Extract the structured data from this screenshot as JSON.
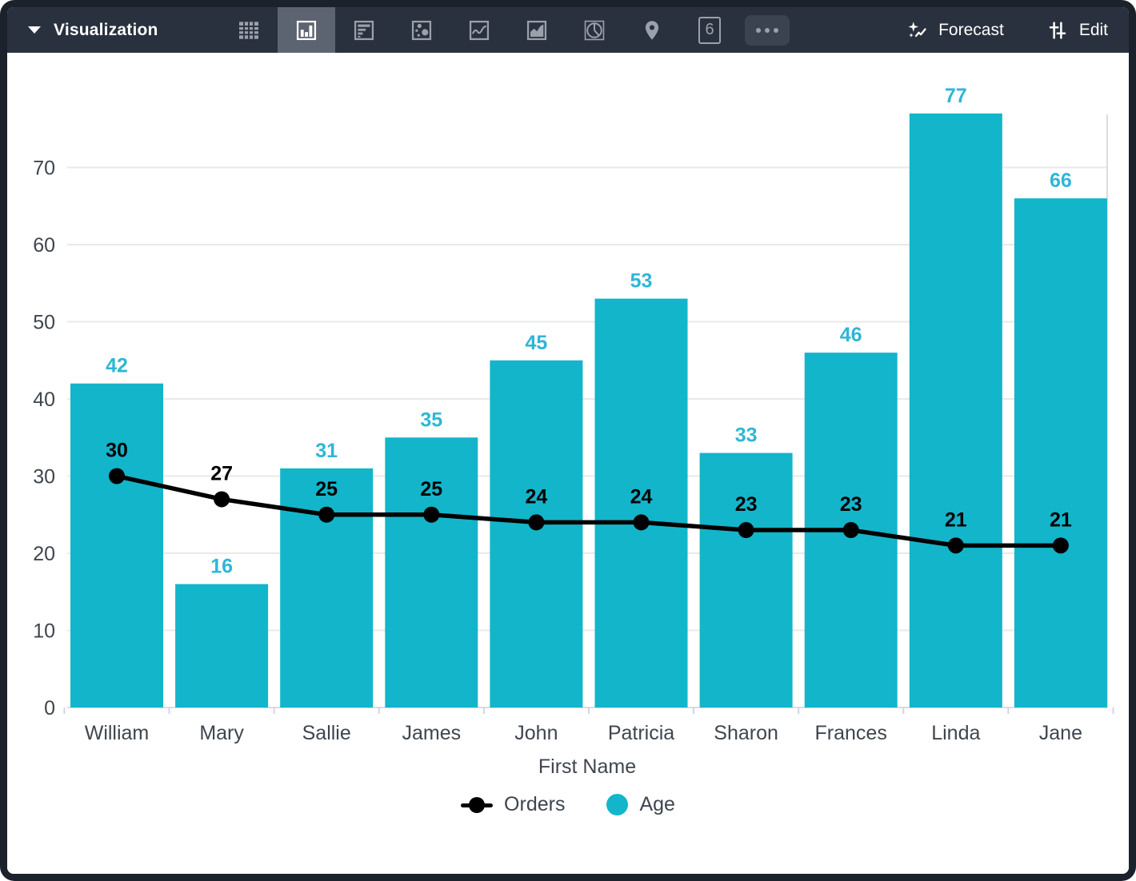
{
  "toolbar": {
    "title": "Visualization",
    "icons": [
      {
        "name": "table-icon",
        "selected": false
      },
      {
        "name": "column-chart-icon",
        "selected": true
      },
      {
        "name": "bar-chart-icon",
        "selected": false
      },
      {
        "name": "scatter-chart-icon",
        "selected": false
      },
      {
        "name": "line-chart-icon",
        "selected": false
      },
      {
        "name": "area-chart-icon",
        "selected": false
      },
      {
        "name": "pie-chart-icon",
        "selected": false
      },
      {
        "name": "map-pin-icon",
        "selected": false
      },
      {
        "name": "single-value-icon",
        "selected": false
      },
      {
        "name": "more-options-icon",
        "selected": false
      }
    ],
    "single_value_glyph": "6",
    "forecast_label": "Forecast",
    "edit_label": "Edit"
  },
  "colors": {
    "toolbar_bg": "#2a313e",
    "selected_icon_bg": "#5d6471",
    "icon_gray": "#9aa1ab",
    "bar": "#13b5ca",
    "bar_label": "#2eb6d6",
    "line": "#000000",
    "axis_text": "#3f454e",
    "gridline": "#e9e9e9",
    "zero_line": "#dcdce4",
    "tick_line": "#d4d4de"
  },
  "chart_data": {
    "type": "combo",
    "categories": [
      "William",
      "Mary",
      "Sallie",
      "James",
      "John",
      "Patricia",
      "Sharon",
      "Frances",
      "Linda",
      "Jane"
    ],
    "series": [
      {
        "name": "Orders",
        "type": "line",
        "color": "#000000",
        "values": [
          30,
          27,
          25,
          25,
          24,
          24,
          23,
          23,
          21,
          21
        ]
      },
      {
        "name": "Age",
        "type": "bar",
        "color": "#13b5ca",
        "values": [
          42,
          16,
          31,
          35,
          45,
          53,
          33,
          46,
          77,
          66
        ]
      }
    ],
    "xlabel": "First Name",
    "ylabel": "",
    "ylim": [
      0,
      80
    ],
    "yticks": [
      0,
      10,
      20,
      30,
      40,
      50,
      60,
      70
    ],
    "grid": true,
    "legend_position": "bottom",
    "data_labels": true
  },
  "legend": {
    "items": [
      {
        "label": "Orders",
        "marker": "line-dot",
        "color": "#000000"
      },
      {
        "label": "Age",
        "marker": "circle",
        "color": "#13b5ca"
      }
    ]
  }
}
